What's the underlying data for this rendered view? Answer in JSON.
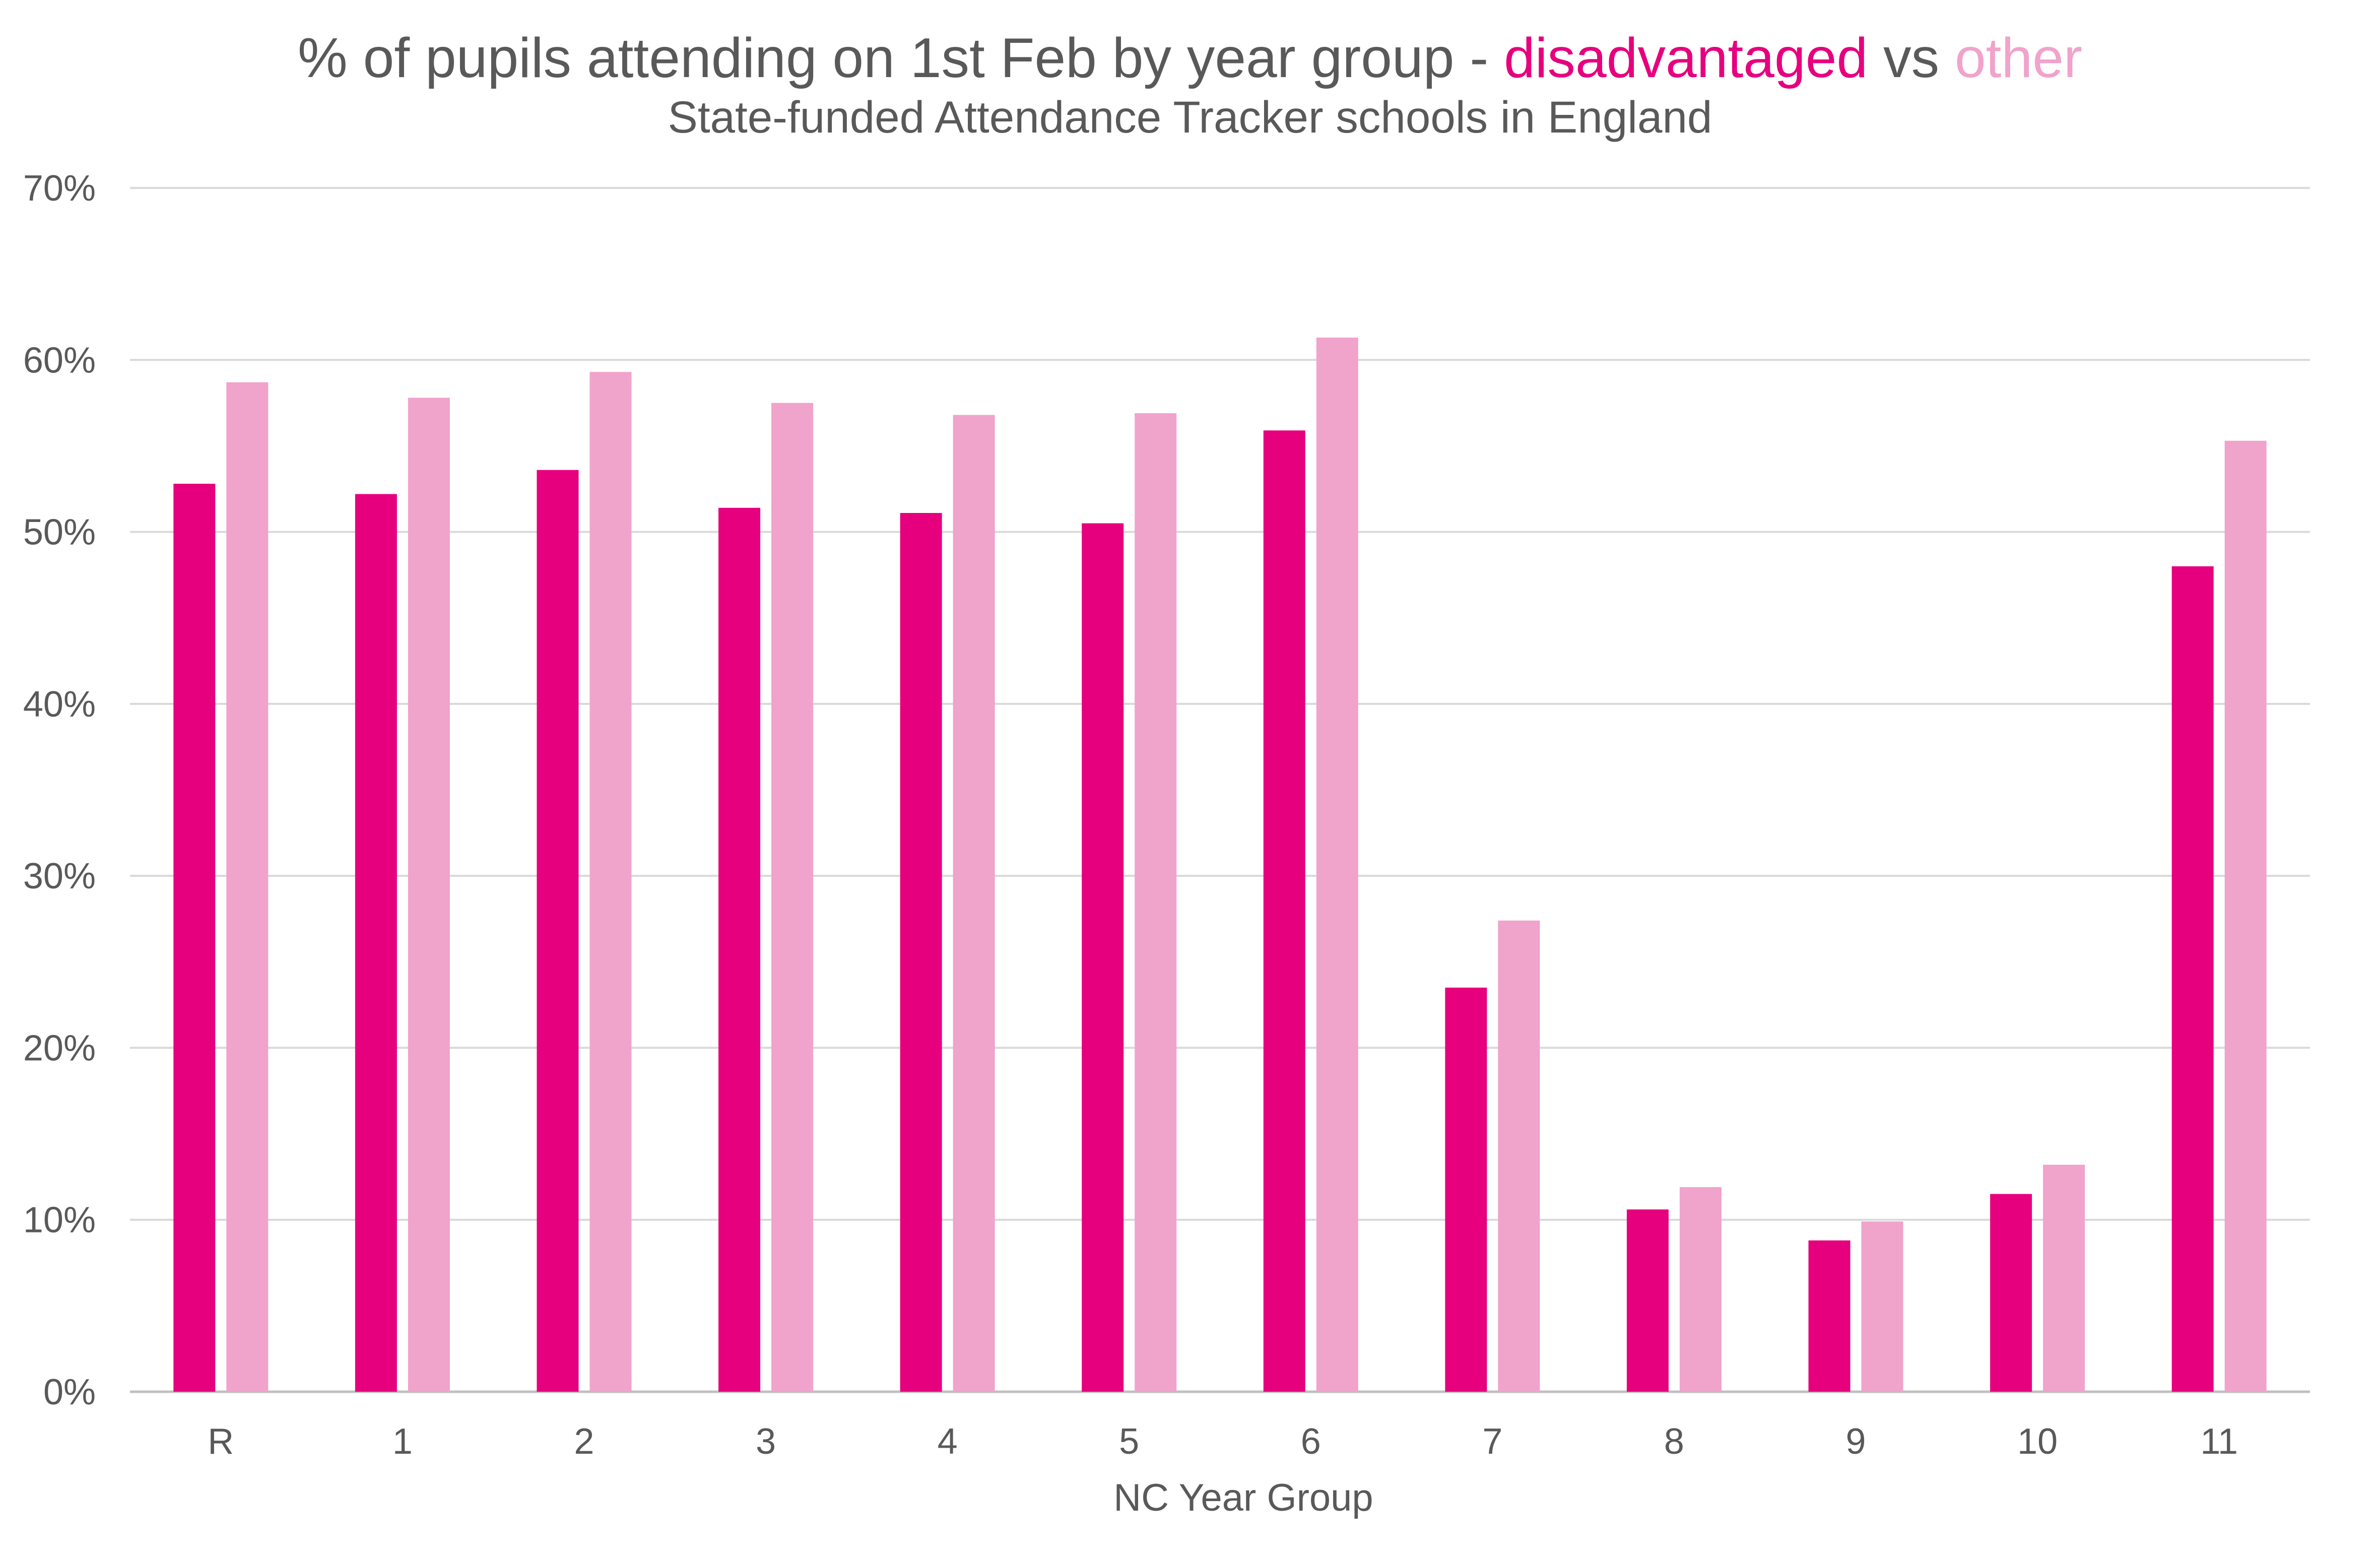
{
  "title": {
    "prefix": "% of pupils attending on 1st Feb by year group - ",
    "series1_word": "disadvantaged",
    "middle": " vs ",
    "series2_word": "other"
  },
  "subtitle": "State-funded Attendance Tracker schools in England",
  "colors": {
    "disadvantaged": "#E6007E",
    "other": "#F0A3CB",
    "text": "#595959",
    "grid": "#D9D9D9"
  },
  "chart_data": {
    "type": "bar",
    "title": "% of pupils attending on 1st Feb by year group - disadvantaged vs other",
    "subtitle": "State-funded Attendance Tracker schools in England",
    "xlabel": "NC Year Group",
    "ylabel": "",
    "categories": [
      "R",
      "1",
      "2",
      "3",
      "4",
      "5",
      "6",
      "7",
      "8",
      "9",
      "10",
      "11"
    ],
    "series": [
      {
        "name": "disadvantaged",
        "color": "#E6007E",
        "values": [
          52.8,
          52.2,
          53.6,
          51.4,
          51.1,
          50.5,
          55.9,
          23.5,
          10.6,
          8.8,
          11.5,
          48.0
        ]
      },
      {
        "name": "other",
        "color": "#F0A3CB",
        "values": [
          58.7,
          57.8,
          59.3,
          57.5,
          56.8,
          56.9,
          61.3,
          27.4,
          11.9,
          9.9,
          13.2,
          55.3
        ]
      }
    ],
    "ylim": [
      0,
      70
    ],
    "yticks": [
      "0%",
      "10%",
      "20%",
      "30%",
      "40%",
      "50%",
      "60%",
      "70%"
    ],
    "grid": true,
    "legend": "none (series named in title colors)"
  }
}
